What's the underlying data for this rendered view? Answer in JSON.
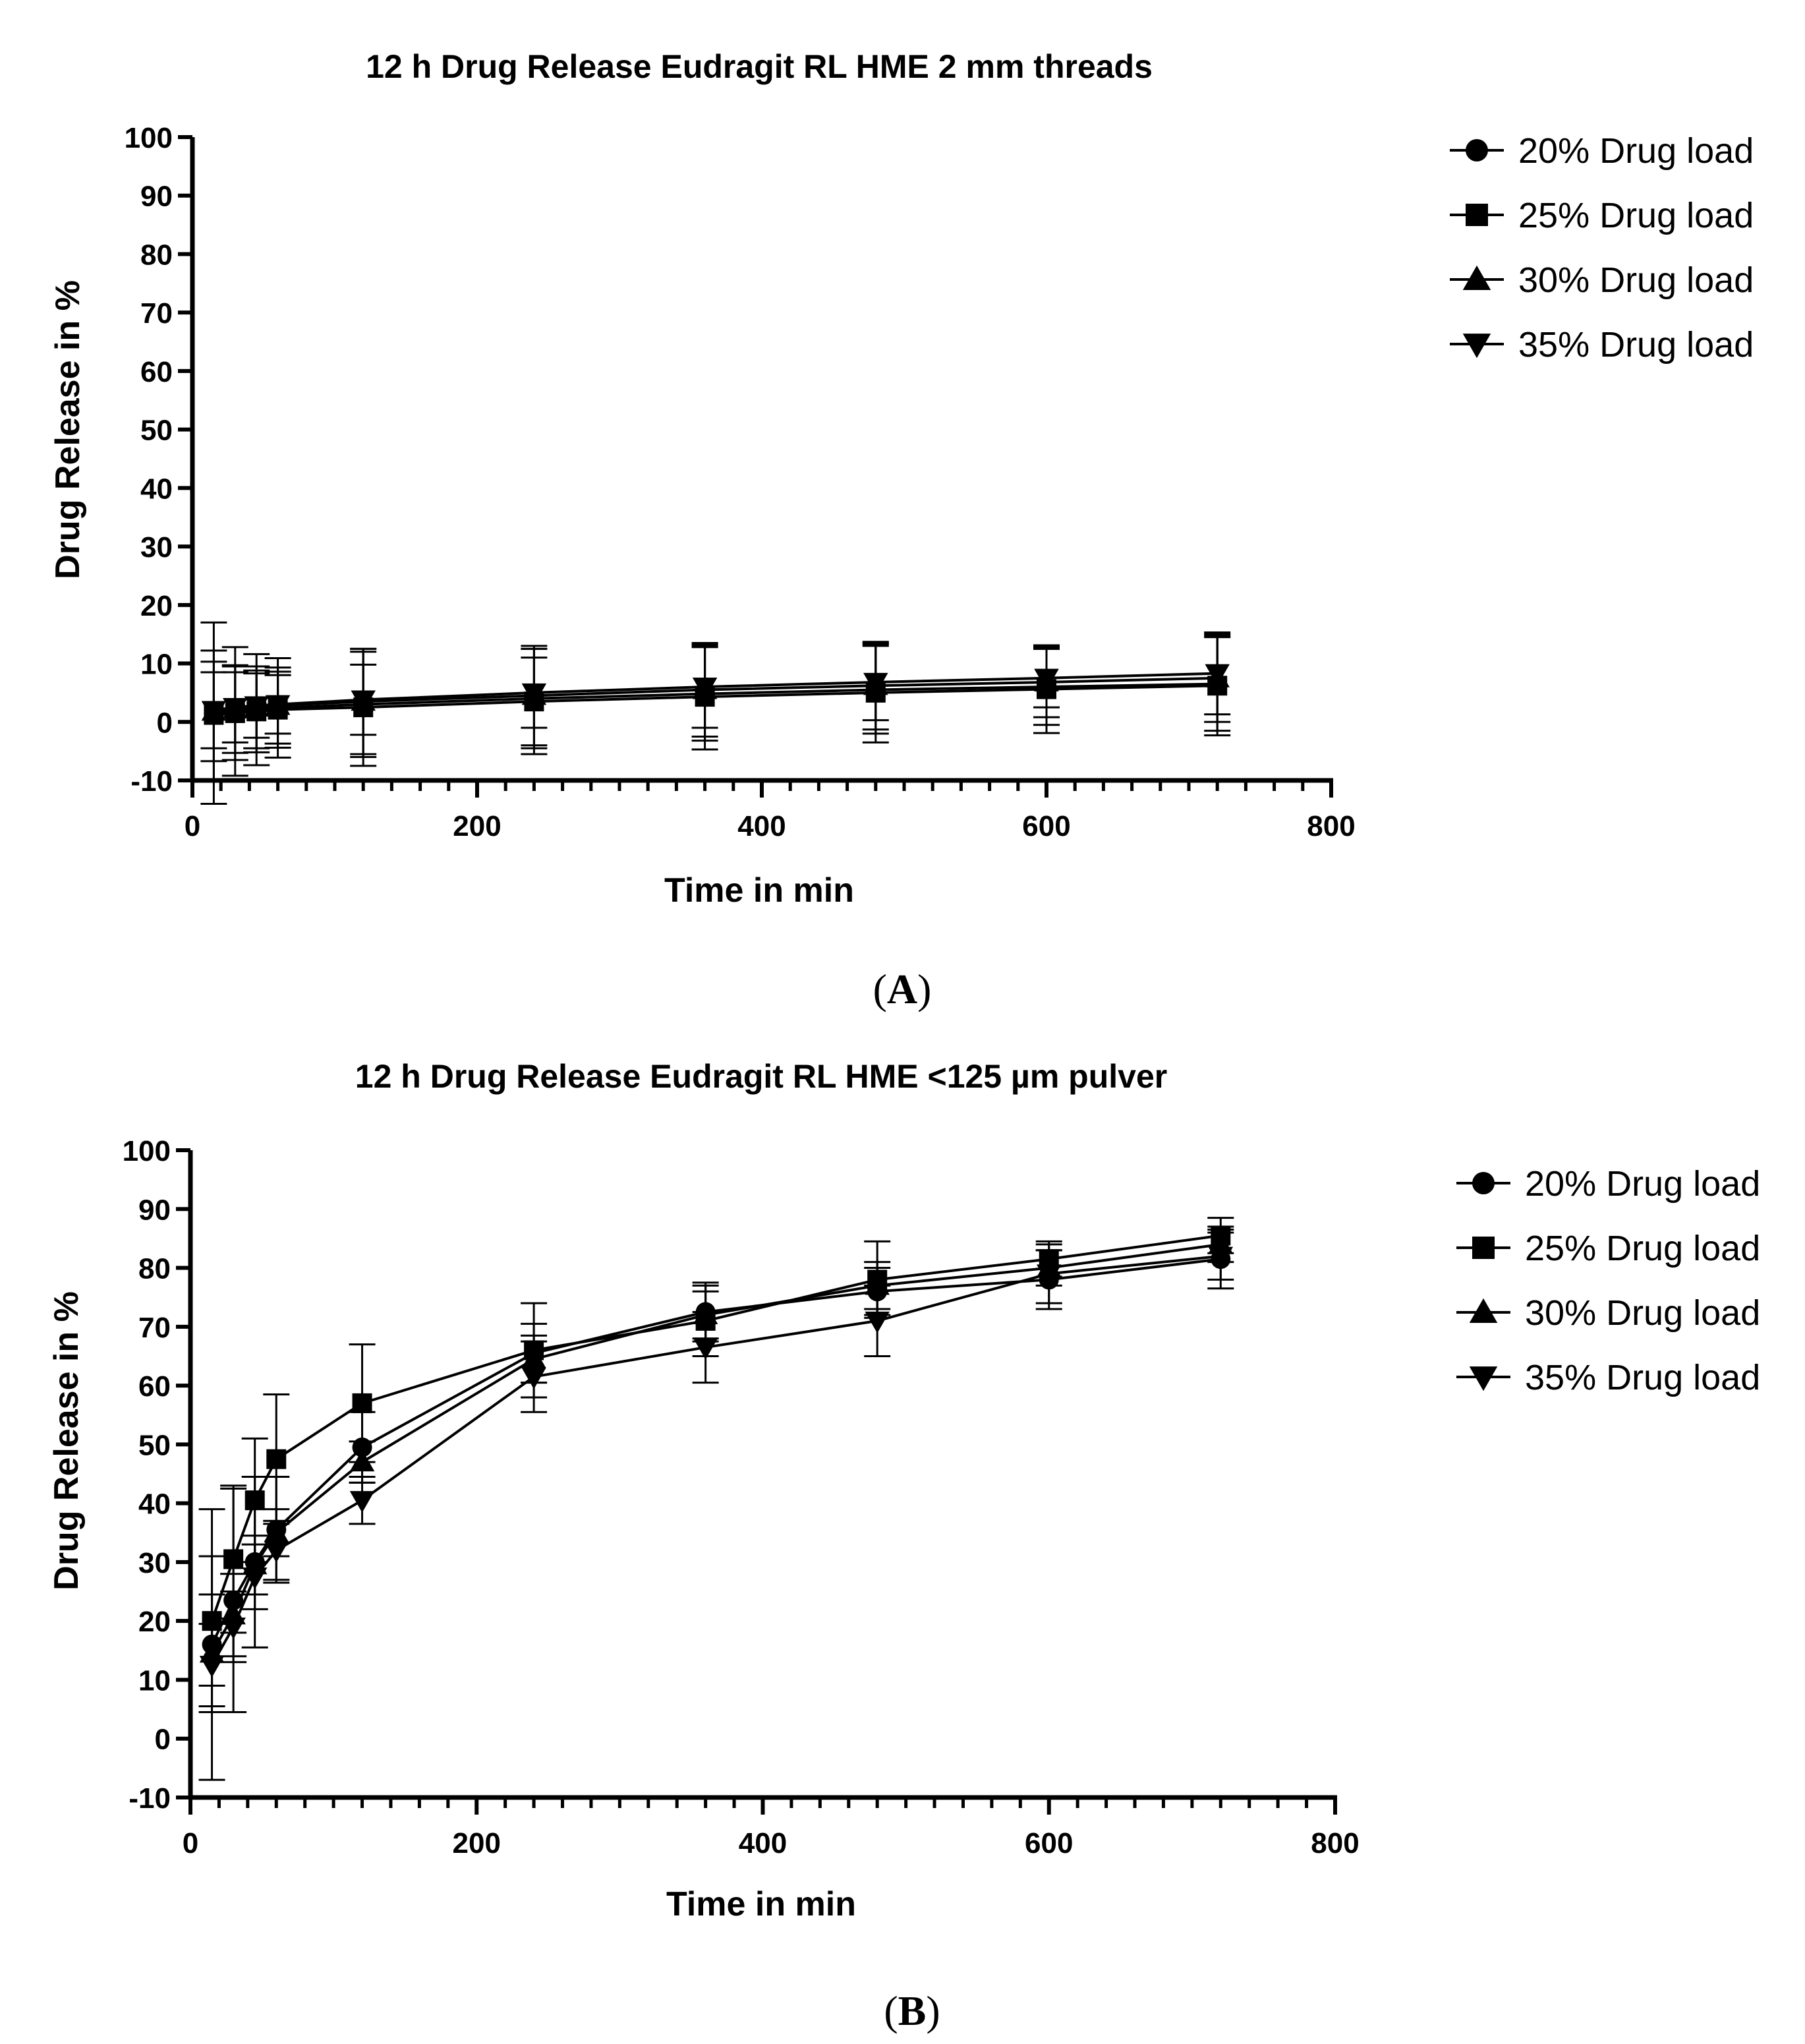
{
  "chart_data": [
    {
      "type": "line",
      "panel": "A",
      "title": "12 h Drug Release Eudragit RL HME 2 mm threads",
      "xlabel": "Time in min",
      "ylabel": "Drug Release in %",
      "xlim": [
        0,
        800
      ],
      "ylim": [
        -10,
        100
      ],
      "xticks": [
        0,
        200,
        400,
        600,
        800
      ],
      "yticks": [
        -10,
        0,
        10,
        20,
        30,
        40,
        50,
        60,
        70,
        80,
        90,
        100
      ],
      "legend_position": "top-right, outside plot",
      "x": [
        15,
        30,
        45,
        60,
        120,
        240,
        360,
        480,
        600,
        720
      ],
      "series": [
        {
          "name": "20% Drug load",
          "marker": "circle",
          "values": [
            1.5,
            1.8,
            2.1,
            2.4,
            3.0,
            4.0,
            4.8,
            5.5,
            6.0,
            6.5
          ],
          "errors": [
            15.5,
            11.0,
            9.5,
            8.5,
            9.0,
            8.5,
            8.0,
            7.5,
            6.5,
            8.0
          ]
        },
        {
          "name": "25% Drug load",
          "marker": "square",
          "values": [
            1.2,
            1.5,
            1.8,
            2.1,
            2.5,
            3.5,
            4.3,
            5.0,
            5.6,
            6.2
          ],
          "errors": [
            11.0,
            8.0,
            7.0,
            6.5,
            10.0,
            9.0,
            9.0,
            8.5,
            7.5,
            8.5
          ]
        },
        {
          "name": "30% Drug load",
          "marker": "triangle-up",
          "values": [
            1.8,
            2.2,
            2.5,
            2.8,
            3.5,
            4.5,
            5.5,
            6.2,
            6.8,
            7.5
          ],
          "errors": [
            8.5,
            7.5,
            7.0,
            6.5,
            9.0,
            8.5,
            8.0,
            7.5,
            6.0,
            7.5
          ]
        },
        {
          "name": "35% Drug load",
          "marker": "triangle-down",
          "values": [
            2.0,
            2.5,
            2.8,
            3.0,
            3.8,
            5.0,
            6.0,
            6.8,
            7.5,
            8.3
          ],
          "errors": [
            6.5,
            6.0,
            5.5,
            5.0,
            6.0,
            6.0,
            7.0,
            6.5,
            5.0,
            7.0
          ]
        }
      ]
    },
    {
      "type": "line",
      "panel": "B",
      "title": "12 h Drug Release Eudragit RL HME <125 µm pulver",
      "xlabel": "Time in min",
      "ylabel": "Drug Release in %",
      "xlim": [
        0,
        800
      ],
      "ylim": [
        -10,
        100
      ],
      "xticks": [
        0,
        200,
        400,
        600,
        800
      ],
      "yticks": [
        -10,
        0,
        10,
        20,
        30,
        40,
        50,
        60,
        70,
        80,
        90,
        100
      ],
      "legend_position": "top-right, outside plot",
      "x": [
        15,
        30,
        45,
        60,
        120,
        240,
        360,
        480,
        600,
        720
      ],
      "series": [
        {
          "name": "20% Drug load",
          "marker": "circle",
          "values": [
            16.0,
            23.5,
            30.0,
            35.5,
            49.5,
            65.5,
            72.5,
            76.0,
            78.0,
            81.5
          ],
          "errors": [
            23.0,
            19.0,
            14.5,
            9.0,
            6.0,
            5.0,
            5.0,
            4.0,
            5.0,
            5.0
          ]
        },
        {
          "name": "25% Drug load",
          "marker": "square",
          "values": [
            20.0,
            30.5,
            40.5,
            47.5,
            57.0,
            66.0,
            71.0,
            78.0,
            81.5,
            85.5
          ],
          "errors": [
            11.0,
            12.5,
            10.5,
            11.0,
            10.0,
            8.0,
            6.0,
            6.5,
            3.0,
            3.0
          ]
        },
        {
          "name": "30% Drug load",
          "marker": "triangle-up",
          "values": [
            14.5,
            21.0,
            29.5,
            35.0,
            47.0,
            64.5,
            72.0,
            77.0,
            80.0,
            84.0
          ],
          "errors": [
            10.0,
            7.0,
            5.0,
            4.0,
            3.5,
            4.0,
            4.0,
            4.0,
            3.0,
            3.0
          ]
        },
        {
          "name": "35% Drug load",
          "marker": "triangle-down",
          "values": [
            12.5,
            19.0,
            27.5,
            32.0,
            40.5,
            61.5,
            66.5,
            71.0,
            79.0,
            82.0
          ],
          "errors": [
            7.0,
            6.0,
            5.5,
            5.0,
            4.0,
            6.0,
            6.0,
            6.0,
            5.0,
            4.0
          ]
        }
      ]
    }
  ],
  "panel_labels": [
    "A",
    "B"
  ],
  "colors": {
    "ink": "#000000",
    "background": "#ffffff"
  }
}
